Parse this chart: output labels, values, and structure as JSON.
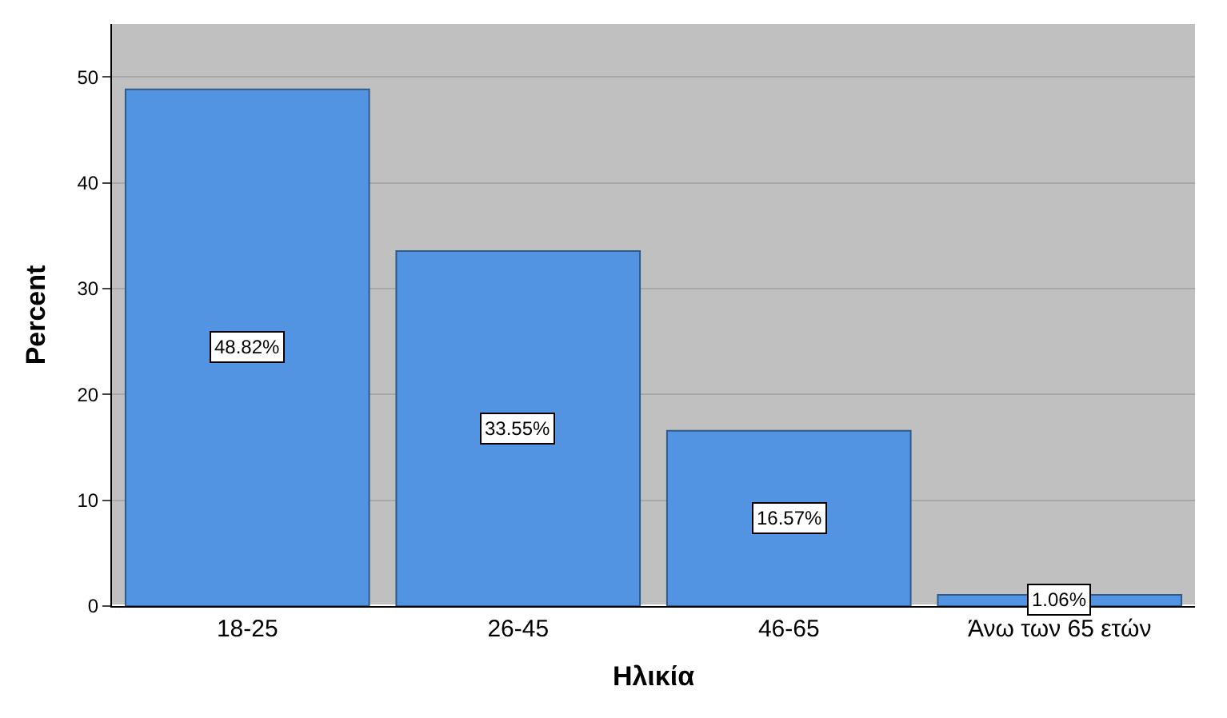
{
  "chart_data": {
    "type": "bar",
    "xlabel": "Ηλικία",
    "ylabel": "Percent",
    "categories": [
      "18-25",
      "26-45",
      "46-65",
      "Άνω των 65 ετών"
    ],
    "values": [
      48.82,
      33.55,
      16.57,
      1.06
    ],
    "value_labels": [
      "48.82%",
      "33.55%",
      "16.57%",
      "1.06%"
    ],
    "color": "#5294e2",
    "ylim": [
      0,
      55
    ],
    "yticks": [
      0,
      10,
      20,
      30,
      40,
      50
    ],
    "grid": "y"
  }
}
